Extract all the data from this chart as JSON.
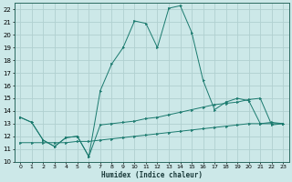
{
  "xlabel": "Humidex (Indice chaleur)",
  "bg_color": "#cce8e8",
  "grid_color": "#b0d0d0",
  "line_color": "#1a7a6e",
  "xlim": [
    -0.5,
    23.5
  ],
  "ylim": [
    10,
    22.5
  ],
  "xticks": [
    0,
    1,
    2,
    3,
    4,
    5,
    6,
    7,
    8,
    9,
    10,
    11,
    12,
    13,
    14,
    15,
    16,
    17,
    18,
    19,
    20,
    21,
    22,
    23
  ],
  "yticks": [
    10,
    11,
    12,
    13,
    14,
    15,
    16,
    17,
    18,
    19,
    20,
    21,
    22
  ],
  "series1_x": [
    0,
    1,
    2,
    3,
    4,
    5,
    6,
    7,
    8,
    9,
    10,
    11,
    12,
    13,
    14,
    15,
    16,
    17,
    18,
    19,
    20,
    21,
    22,
    23
  ],
  "series1_y": [
    13.5,
    13.1,
    11.7,
    11.2,
    11.9,
    12.0,
    10.4,
    12.9,
    13.0,
    13.1,
    13.2,
    13.4,
    13.5,
    13.7,
    13.9,
    14.1,
    14.3,
    14.5,
    14.6,
    14.7,
    14.9,
    15.0,
    12.9,
    13.0
  ],
  "series2_x": [
    0,
    1,
    2,
    3,
    4,
    5,
    6,
    7,
    8,
    9,
    10,
    11,
    12,
    13,
    14,
    15,
    16,
    17,
    18,
    19,
    20,
    21,
    22,
    23
  ],
  "series2_y": [
    13.5,
    13.1,
    11.7,
    11.2,
    11.9,
    12.0,
    10.4,
    15.6,
    17.7,
    19.0,
    21.1,
    20.9,
    19.0,
    22.1,
    22.3,
    20.2,
    16.4,
    14.1,
    14.7,
    15.0,
    14.8,
    13.0,
    13.1,
    13.0
  ],
  "series3_x": [
    0,
    1,
    2,
    3,
    4,
    5,
    6,
    7,
    8,
    9,
    10,
    11,
    12,
    13,
    14,
    15,
    16,
    17,
    18,
    19,
    20,
    21,
    22,
    23
  ],
  "series3_y": [
    11.5,
    11.5,
    11.5,
    11.5,
    11.5,
    11.6,
    11.6,
    11.7,
    11.8,
    11.9,
    12.0,
    12.1,
    12.2,
    12.3,
    12.4,
    12.5,
    12.6,
    12.7,
    12.8,
    12.9,
    13.0,
    13.0,
    13.0,
    13.0
  ]
}
